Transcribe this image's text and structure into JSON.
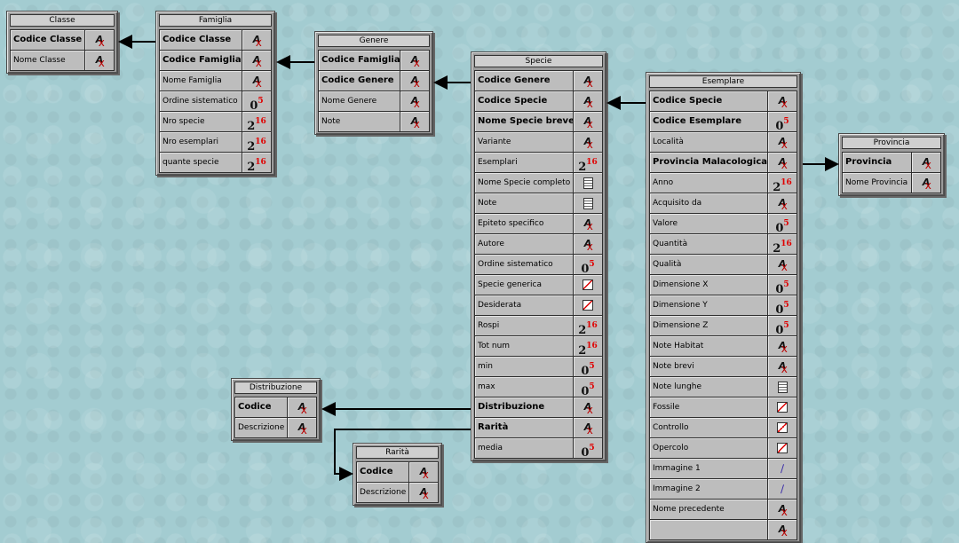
{
  "tables": [
    {
      "id": "classe",
      "title": "Classe",
      "fields": [
        {
          "name": "Codice Classe",
          "key": true,
          "type": "text"
        },
        {
          "name": "Nome Classe",
          "key": false,
          "type": "text"
        }
      ]
    },
    {
      "id": "famiglia",
      "title": "Famiglia",
      "fields": [
        {
          "name": "Codice Classe",
          "key": true,
          "type": "text"
        },
        {
          "name": "Codice Famiglia",
          "key": true,
          "type": "text"
        },
        {
          "name": "Nome Famiglia",
          "key": false,
          "type": "text"
        },
        {
          "name": "Ordine sistematico",
          "key": false,
          "type": "real"
        },
        {
          "name": "Nro specie",
          "key": false,
          "type": "integer"
        },
        {
          "name": "Nro esemplari",
          "key": false,
          "type": "integer"
        },
        {
          "name": "quante specie",
          "key": false,
          "type": "integer"
        }
      ]
    },
    {
      "id": "genere",
      "title": "Genere",
      "fields": [
        {
          "name": "Codice Famiglia",
          "key": true,
          "type": "text"
        },
        {
          "name": "Codice Genere",
          "key": true,
          "type": "text"
        },
        {
          "name": "Nome Genere",
          "key": false,
          "type": "text"
        },
        {
          "name": "Note",
          "key": false,
          "type": "text"
        }
      ]
    },
    {
      "id": "specie",
      "title": "Specie",
      "fields": [
        {
          "name": "Codice Genere",
          "key": true,
          "type": "text"
        },
        {
          "name": "Codice Specie",
          "key": true,
          "type": "text"
        },
        {
          "name": "Nome Specie breve",
          "key": true,
          "type": "text"
        },
        {
          "name": "Variante",
          "key": false,
          "type": "text"
        },
        {
          "name": "Esemplari",
          "key": false,
          "type": "integer"
        },
        {
          "name": "Nome Specie completo",
          "key": false,
          "type": "memo"
        },
        {
          "name": "Note",
          "key": false,
          "type": "memo"
        },
        {
          "name": "Epiteto specifico",
          "key": false,
          "type": "text"
        },
        {
          "name": "Autore",
          "key": false,
          "type": "text"
        },
        {
          "name": "Ordine sistematico",
          "key": false,
          "type": "real"
        },
        {
          "name": "Specie generica",
          "key": false,
          "type": "boolean"
        },
        {
          "name": "Desiderata",
          "key": false,
          "type": "boolean"
        },
        {
          "name": "Rospi",
          "key": false,
          "type": "integer"
        },
        {
          "name": "Tot num",
          "key": false,
          "type": "integer"
        },
        {
          "name": "min",
          "key": false,
          "type": "real"
        },
        {
          "name": "max",
          "key": false,
          "type": "real"
        },
        {
          "name": "Distribuzione",
          "key": true,
          "type": "text"
        },
        {
          "name": "Rarità",
          "key": true,
          "type": "text"
        },
        {
          "name": "media",
          "key": false,
          "type": "real"
        }
      ]
    },
    {
      "id": "esemplare",
      "title": "Esemplare",
      "fields": [
        {
          "name": "Codice Specie",
          "key": true,
          "type": "text"
        },
        {
          "name": "Codice Esemplare",
          "key": true,
          "type": "real"
        },
        {
          "name": "Località",
          "key": false,
          "type": "text"
        },
        {
          "name": "Provincia Malacologica",
          "key": true,
          "type": "text"
        },
        {
          "name": "Anno",
          "key": false,
          "type": "integer"
        },
        {
          "name": "Acquisito da",
          "key": false,
          "type": "text"
        },
        {
          "name": "Valore",
          "key": false,
          "type": "real"
        },
        {
          "name": "Quantità",
          "key": false,
          "type": "integer"
        },
        {
          "name": "Qualità",
          "key": false,
          "type": "text"
        },
        {
          "name": "Dimensione X",
          "key": false,
          "type": "real"
        },
        {
          "name": "Dimensione Y",
          "key": false,
          "type": "real"
        },
        {
          "name": "Dimensione Z",
          "key": false,
          "type": "real"
        },
        {
          "name": "Note Habitat",
          "key": false,
          "type": "text"
        },
        {
          "name": "Note brevi",
          "key": false,
          "type": "text"
        },
        {
          "name": "Note lunghe",
          "key": false,
          "type": "memo"
        },
        {
          "name": "Fossile",
          "key": false,
          "type": "boolean"
        },
        {
          "name": "Controllo",
          "key": false,
          "type": "boolean"
        },
        {
          "name": "Opercolo",
          "key": false,
          "type": "boolean"
        },
        {
          "name": "Immagine 1",
          "key": false,
          "type": "picture"
        },
        {
          "name": "Immagine 2",
          "key": false,
          "type": "picture"
        },
        {
          "name": "Nome precedente",
          "key": false,
          "type": "text"
        },
        {
          "name": "",
          "key": false,
          "type": "text"
        }
      ]
    },
    {
      "id": "provincia",
      "title": "Provincia",
      "fields": [
        {
          "name": "Provincia",
          "key": true,
          "type": "text"
        },
        {
          "name": "Nome Provincia",
          "key": false,
          "type": "text"
        }
      ]
    },
    {
      "id": "distribuzione",
      "title": "Distribuzione",
      "fields": [
        {
          "name": "Codice",
          "key": true,
          "type": "text"
        },
        {
          "name": "Descrizione",
          "key": false,
          "type": "text"
        }
      ]
    },
    {
      "id": "rarita",
      "title": "Rarità",
      "fields": [
        {
          "name": "Codice",
          "key": true,
          "type": "text"
        },
        {
          "name": "Descrizione",
          "key": false,
          "type": "text"
        }
      ]
    }
  ],
  "type_icons": {
    "text": "text-field-icon",
    "integer": "integer-field-icon",
    "real": "real-field-icon",
    "memo": "memo-field-icon",
    "boolean": "boolean-field-icon",
    "picture": "picture-field-icon"
  },
  "colors": {
    "background": "#a3ccd1",
    "table": "#9c9c9c",
    "number_superscript": "#e00000"
  }
}
